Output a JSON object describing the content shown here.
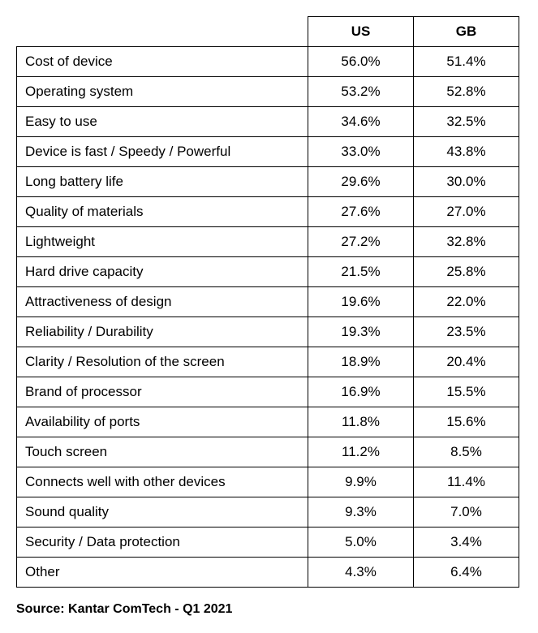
{
  "table": {
    "type": "table",
    "columns": [
      "",
      "US",
      "GB"
    ],
    "column_widths_pct": [
      58,
      21,
      21
    ],
    "text_align": [
      "left",
      "center",
      "center"
    ],
    "header_fontweight": "bold",
    "cell_fontsize_pt": 13,
    "border_color": "#000000",
    "background_color": "#ffffff",
    "rows": [
      [
        "Cost of device",
        "56.0%",
        "51.4%"
      ],
      [
        "Operating system",
        "53.2%",
        "52.8%"
      ],
      [
        "Easy to use",
        "34.6%",
        "32.5%"
      ],
      [
        "Device is fast / Speedy / Powerful",
        "33.0%",
        "43.8%"
      ],
      [
        "Long battery life",
        "29.6%",
        "30.0%"
      ],
      [
        "Quality of materials",
        "27.6%",
        "27.0%"
      ],
      [
        "Lightweight",
        "27.2%",
        "32.8%"
      ],
      [
        "Hard drive capacity",
        "21.5%",
        "25.8%"
      ],
      [
        "Attractiveness of design",
        "19.6%",
        "22.0%"
      ],
      [
        "Reliability / Durability",
        "19.3%",
        "23.5%"
      ],
      [
        "Clarity / Resolution of the screen",
        "18.9%",
        "20.4%"
      ],
      [
        "Brand of processor",
        "16.9%",
        "15.5%"
      ],
      [
        "Availability of ports",
        "11.8%",
        "15.6%"
      ],
      [
        "Touch screen",
        "11.2%",
        "8.5%"
      ],
      [
        "Connects well with other devices",
        "9.9%",
        "11.4%"
      ],
      [
        "Sound quality",
        "9.3%",
        "7.0%"
      ],
      [
        "Security / Data protection",
        "5.0%",
        "3.4%"
      ],
      [
        "Other",
        "4.3%",
        "6.4%"
      ]
    ]
  },
  "source_line": "Source: Kantar ComTech - Q1 2021"
}
